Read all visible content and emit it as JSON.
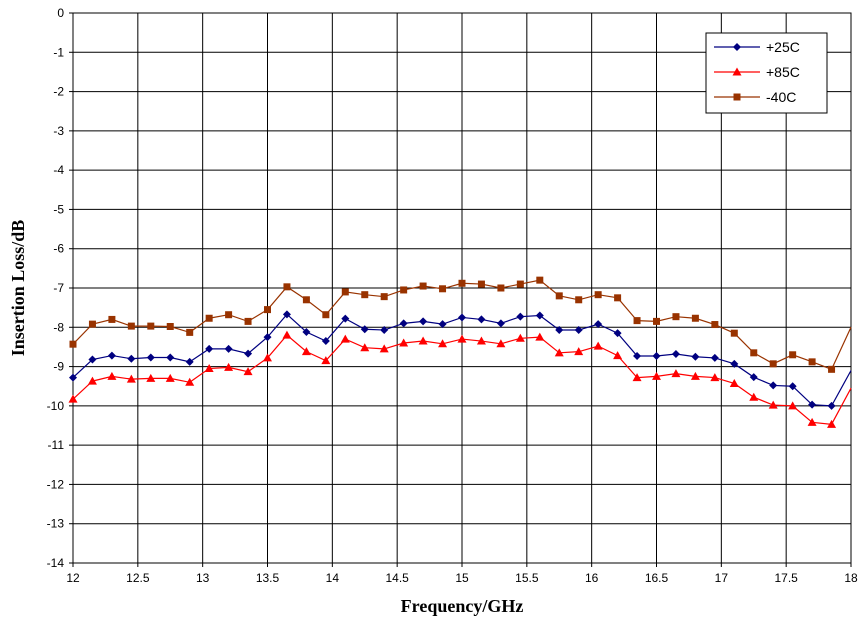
{
  "chart_data": {
    "type": "line",
    "title": "",
    "xlabel": "Frequency/GHz",
    "ylabel": "Insertion Loss/dB",
    "xlim": [
      12,
      18
    ],
    "ylim": [
      -14,
      0
    ],
    "x_ticks": [
      "12",
      "12.5",
      "13",
      "13.5",
      "14",
      "14.5",
      "15",
      "15.5",
      "16",
      "16.5",
      "17",
      "17.5",
      "18"
    ],
    "y_ticks": [
      "0",
      "-1",
      "-2",
      "-3",
      "-4",
      "-5",
      "-6",
      "-7",
      "-8",
      "-9",
      "-10",
      "-11",
      "-12",
      "-13",
      "-14"
    ],
    "grid": true,
    "legend_position": "top-right",
    "x": [
      12.0,
      12.15,
      12.3,
      12.45,
      12.6,
      12.75,
      12.9,
      13.05,
      13.2,
      13.35,
      13.5,
      13.65,
      13.8,
      13.95,
      14.1,
      14.25,
      14.4,
      14.55,
      14.7,
      14.85,
      15.0,
      15.15,
      15.3,
      15.45,
      15.6,
      15.75,
      15.9,
      16.05,
      16.2,
      16.35,
      16.5,
      16.65,
      16.8,
      16.95,
      17.1,
      17.25,
      17.4,
      17.55,
      17.7,
      17.85,
      18.0
    ],
    "series": [
      {
        "name": "+25C",
        "color": "#000080",
        "marker": "diamond",
        "values": [
          -9.28,
          -8.82,
          -8.72,
          -8.8,
          -8.77,
          -8.77,
          -8.88,
          -8.55,
          -8.55,
          -8.67,
          -8.25,
          -7.67,
          -8.12,
          -8.35,
          -7.78,
          -8.05,
          -8.07,
          -7.9,
          -7.85,
          -7.92,
          -7.75,
          -7.8,
          -7.9,
          -7.73,
          -7.7,
          -8.07,
          -8.07,
          -7.92,
          -8.15,
          -8.73,
          -8.73,
          -8.68,
          -8.75,
          -8.78,
          -8.93,
          -9.27,
          -9.48,
          -9.5,
          -9.97,
          -10.0,
          -9.1
        ]
      },
      {
        "name": "+85C",
        "color": "#ff0000",
        "marker": "triangle",
        "values": [
          -9.83,
          -9.37,
          -9.25,
          -9.32,
          -9.3,
          -9.3,
          -9.4,
          -9.05,
          -9.02,
          -9.13,
          -8.78,
          -8.2,
          -8.62,
          -8.85,
          -8.3,
          -8.52,
          -8.55,
          -8.4,
          -8.35,
          -8.42,
          -8.3,
          -8.35,
          -8.42,
          -8.28,
          -8.25,
          -8.65,
          -8.62,
          -8.48,
          -8.72,
          -9.28,
          -9.25,
          -9.18,
          -9.25,
          -9.28,
          -9.43,
          -9.78,
          -9.98,
          -10.0,
          -10.42,
          -10.47,
          -9.55
        ]
      },
      {
        "name": "-40C",
        "color": "#993300",
        "marker": "square",
        "values": [
          -8.43,
          -7.92,
          -7.8,
          -7.97,
          -7.97,
          -7.98,
          -8.13,
          -7.77,
          -7.68,
          -7.85,
          -7.55,
          -6.97,
          -7.3,
          -7.68,
          -7.1,
          -7.17,
          -7.22,
          -7.05,
          -6.95,
          -7.02,
          -6.88,
          -6.9,
          -7.0,
          -6.9,
          -6.8,
          -7.2,
          -7.3,
          -7.17,
          -7.25,
          -7.83,
          -7.85,
          -7.73,
          -7.77,
          -7.93,
          -8.15,
          -8.65,
          -8.93,
          -8.7,
          -8.88,
          -9.07,
          -8.0
        ]
      }
    ]
  }
}
